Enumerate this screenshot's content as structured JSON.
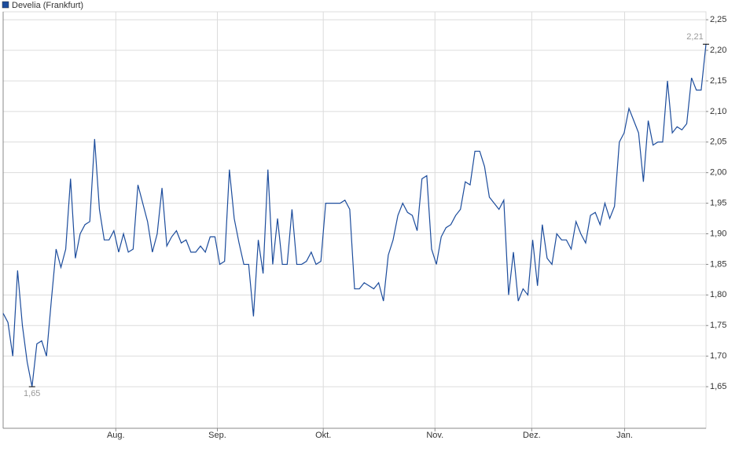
{
  "chart_data": {
    "type": "line",
    "series": [
      {
        "name": "Develia (Frankfurt)",
        "color": "#1c4c9c",
        "values": [
          1.77,
          1.755,
          1.7,
          1.84,
          1.75,
          1.69,
          1.65,
          1.72,
          1.725,
          1.7,
          1.79,
          1.875,
          1.845,
          1.875,
          1.99,
          1.86,
          1.9,
          1.915,
          1.92,
          2.055,
          1.94,
          1.89,
          1.89,
          1.905,
          1.87,
          1.9,
          1.87,
          1.875,
          1.98,
          1.95,
          1.92,
          1.87,
          1.9,
          1.975,
          1.88,
          1.895,
          1.905,
          1.885,
          1.89,
          1.87,
          1.87,
          1.88,
          1.87,
          1.895,
          1.895,
          1.85,
          1.855,
          2.005,
          1.925,
          1.885,
          1.85,
          1.85,
          1.765,
          1.89,
          1.835,
          2.005,
          1.85,
          1.925,
          1.85,
          1.85,
          1.94,
          1.85,
          1.85,
          1.855,
          1.87,
          1.85,
          1.855,
          1.95,
          1.95,
          1.95,
          1.95,
          1.955,
          1.94,
          1.81,
          1.81,
          1.82,
          1.815,
          1.81,
          1.82,
          1.79,
          1.865,
          1.89,
          1.93,
          1.95,
          1.935,
          1.93,
          1.905,
          1.99,
          1.995,
          1.875,
          1.85,
          1.895,
          1.91,
          1.915,
          1.93,
          1.94,
          1.985,
          1.98,
          2.035,
          2.035,
          2.01,
          1.96,
          1.95,
          1.94,
          1.955,
          1.8,
          1.87,
          1.79,
          1.81,
          1.8,
          1.89,
          1.815,
          1.915,
          1.86,
          1.85,
          1.9,
          1.89,
          1.89,
          1.875,
          1.92,
          1.9,
          1.885,
          1.93,
          1.935,
          1.915,
          1.95,
          1.925,
          1.945,
          2.05,
          2.065,
          2.105,
          2.085,
          2.065,
          1.985,
          2.085,
          2.045,
          2.05,
          2.05,
          2.15,
          2.065,
          2.075,
          2.07,
          2.08,
          2.155,
          2.135,
          2.135,
          2.21
        ]
      }
    ],
    "xlim": [
      0,
      146
    ],
    "xticks": [
      {
        "value": 23.4,
        "label": "Aug."
      },
      {
        "value": 44.5,
        "label": "Sep."
      },
      {
        "value": 66.5,
        "label": "Okt."
      },
      {
        "value": 89.7,
        "label": "Nov."
      },
      {
        "value": 109.8,
        "label": "Dez."
      },
      {
        "value": 129.1,
        "label": "Jan."
      }
    ],
    "ylim": [
      1.582,
      2.263
    ],
    "yticks": [
      {
        "value": 1.65,
        "label": "1,65"
      },
      {
        "value": 1.7,
        "label": "1,70"
      },
      {
        "value": 1.75,
        "label": "1,75"
      },
      {
        "value": 1.8,
        "label": "1,80"
      },
      {
        "value": 1.85,
        "label": "1,85"
      },
      {
        "value": 1.9,
        "label": "1,90"
      },
      {
        "value": 1.95,
        "label": "1,95"
      },
      {
        "value": 2.0,
        "label": "2,00"
      },
      {
        "value": 2.05,
        "label": "2,05"
      },
      {
        "value": 2.1,
        "label": "2,10"
      },
      {
        "value": 2.15,
        "label": "2,15"
      },
      {
        "value": 2.2,
        "label": "2,20"
      },
      {
        "value": 2.25,
        "label": "2,25"
      }
    ],
    "annotations": [
      {
        "label": "1,65",
        "value": 1.65,
        "x": 6
      },
      {
        "label": "2,21",
        "value": 2.21,
        "x": 146
      }
    ],
    "grid": true
  }
}
